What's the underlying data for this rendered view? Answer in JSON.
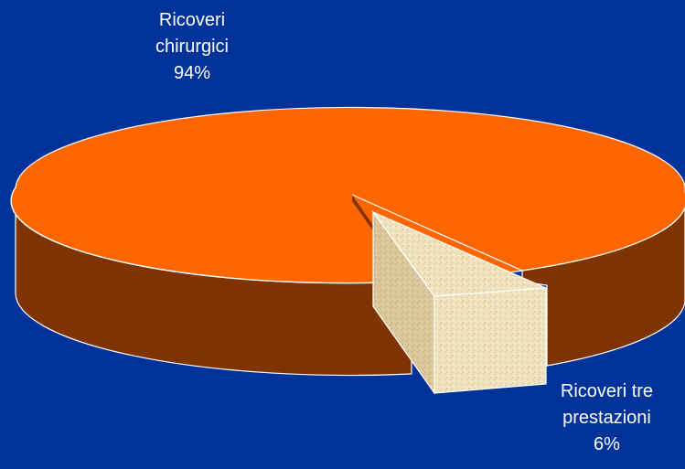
{
  "chart_data": {
    "type": "pie",
    "style": "3d-exploded",
    "slices": [
      {
        "label_lines": [
          "Ricoveri",
          "chirurgici"
        ],
        "value": 94,
        "value_label": "94%",
        "color": "#ff6600",
        "side_color": "#7f3300"
      },
      {
        "label_lines": [
          "Ricoveri tre",
          "prestazioni"
        ],
        "value": 6,
        "value_label": "6%",
        "color": "#efe0b8",
        "side_color": "#d6c293",
        "exploded": true
      }
    ],
    "background": "#003399"
  }
}
